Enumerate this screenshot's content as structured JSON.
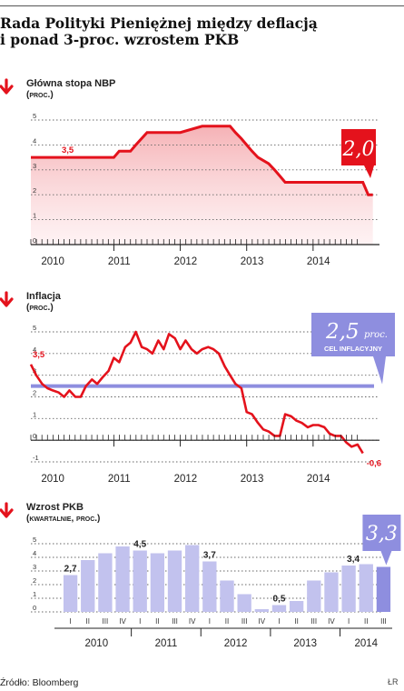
{
  "title": {
    "line1": "Rada Polityki Pieniężnej między deflacją",
    "line2": "i ponad 3-proc. wzrostem PKB"
  },
  "source": "Źródło: Bloomberg",
  "credit": "ŁR",
  "colors": {
    "red": "#e4121c",
    "purple": "#8e8edf",
    "bar": "#c2c2ee",
    "dark": "#222222"
  },
  "icons": {
    "trend_down": "arrow-down-icon"
  },
  "chart_data": [
    {
      "type": "line",
      "title_line1": "Główna stopa NBP",
      "title_line2": "(proc.)",
      "x_tick_labels": [
        "2010",
        "2011",
        "2012",
        "2013",
        "2014"
      ],
      "ylim": [
        0,
        5
      ],
      "y_tick_labels": [
        "0",
        "1",
        "2",
        "3",
        "4",
        "5"
      ],
      "grid": true,
      "area_fill": true,
      "start_label": "3,5",
      "callout": "2,0",
      "series": [
        {
          "x": [
            2009.75,
            2011.0,
            2011.08,
            2011.25,
            2011.33,
            2011.5,
            2012.0,
            2012.33,
            2012.75,
            2012.83,
            2012.92,
            2013.0,
            2013.08,
            2013.17,
            2013.33,
            2013.42,
            2013.5,
            2013.58,
            2014.0,
            2014.5,
            2014.75,
            2014.83,
            2014.9
          ],
          "y": [
            3.5,
            3.5,
            3.75,
            3.75,
            4.0,
            4.5,
            4.5,
            4.75,
            4.75,
            4.5,
            4.25,
            4.0,
            3.75,
            3.5,
            3.25,
            3.0,
            2.75,
            2.5,
            2.5,
            2.5,
            2.5,
            2.0,
            2.0
          ]
        }
      ]
    },
    {
      "type": "line",
      "title_line1": "Inflacja",
      "title_line2": "(proc.)",
      "x_tick_labels": [
        "2010",
        "2011",
        "2012",
        "2013",
        "2014"
      ],
      "ylim": [
        -1,
        5
      ],
      "y_tick_labels": [
        "-1",
        "0",
        "1",
        "2",
        "3",
        "4",
        "5"
      ],
      "grid": true,
      "start_label": "3,5",
      "end_label": "-0,6",
      "callout": "2,5",
      "callout_unit": "proc.",
      "callout_sub": "CEL INFLACYJNY",
      "target": 2.5,
      "series": [
        {
          "x": [
            2009.75,
            2009.83,
            2009.92,
            2010.0,
            2010.08,
            2010.17,
            2010.25,
            2010.33,
            2010.42,
            2010.5,
            2010.58,
            2010.67,
            2010.75,
            2010.83,
            2010.92,
            2011.0,
            2011.08,
            2011.17,
            2011.25,
            2011.33,
            2011.42,
            2011.5,
            2011.58,
            2011.67,
            2011.75,
            2011.83,
            2011.92,
            2012.0,
            2012.08,
            2012.17,
            2012.25,
            2012.33,
            2012.42,
            2012.5,
            2012.58,
            2012.67,
            2012.75,
            2012.83,
            2012.92,
            2013.0,
            2013.08,
            2013.17,
            2013.25,
            2013.33,
            2013.42,
            2013.5,
            2013.58,
            2013.67,
            2013.75,
            2013.83,
            2013.92,
            2014.0,
            2014.08,
            2014.17,
            2014.25,
            2014.33,
            2014.42,
            2014.5,
            2014.58,
            2014.67,
            2014.75
          ],
          "y": [
            3.5,
            3.0,
            2.6,
            2.4,
            2.3,
            2.2,
            2.0,
            2.3,
            2.0,
            2.0,
            2.5,
            2.8,
            2.6,
            2.9,
            3.2,
            3.8,
            3.6,
            4.3,
            4.5,
            5.0,
            4.3,
            4.2,
            4.0,
            4.6,
            4.2,
            4.9,
            4.7,
            4.2,
            4.6,
            4.2,
            4.0,
            4.2,
            4.3,
            4.2,
            4.0,
            3.4,
            3.0,
            2.6,
            2.4,
            1.3,
            1.2,
            0.8,
            0.5,
            0.4,
            0.2,
            0.2,
            1.2,
            1.1,
            0.9,
            0.8,
            0.6,
            0.7,
            0.7,
            0.6,
            0.3,
            0.2,
            0.2,
            -0.1,
            -0.3,
            -0.2,
            -0.6
          ]
        }
      ]
    },
    {
      "type": "bar",
      "title_line1": "Wzrost PKB",
      "title_line2": "(kwartalnie, proc.)",
      "categories": [
        "I",
        "II",
        "III",
        "IV",
        "I",
        "II",
        "III",
        "IV",
        "I",
        "II",
        "III",
        "IV",
        "I",
        "II",
        "III",
        "IV",
        "I",
        "II",
        "III"
      ],
      "year_labels": [
        "2010",
        "2011",
        "2012",
        "2013",
        "2014"
      ],
      "values": [
        2.7,
        3.8,
        4.3,
        4.8,
        4.5,
        4.3,
        4.5,
        4.9,
        3.7,
        2.3,
        1.3,
        0.2,
        0.5,
        0.8,
        2.3,
        2.9,
        3.4,
        3.5,
        3.3
      ],
      "data_labels": [
        {
          "index": 0,
          "text": "2,7"
        },
        {
          "index": 4,
          "text": "4,5"
        },
        {
          "index": 8,
          "text": "3,7"
        },
        {
          "index": 12,
          "text": "0,5"
        },
        {
          "index": 16,
          "text": "3,4"
        }
      ],
      "ylim": [
        0,
        5
      ],
      "y_tick_labels": [
        "0",
        "1",
        "2",
        "3",
        "4",
        "5"
      ],
      "grid": true,
      "callout": "3,3"
    }
  ]
}
